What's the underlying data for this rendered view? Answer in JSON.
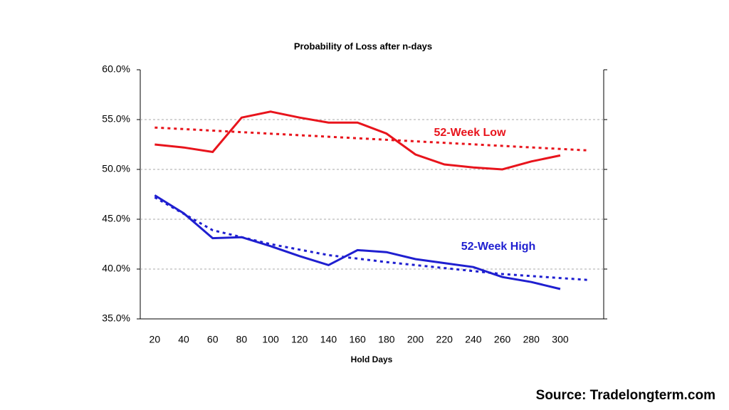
{
  "chart_data": {
    "type": "line",
    "title": "Probability of Loss after n-days",
    "x_label": "Hold Days",
    "source": "Source: Tradelongterm.com",
    "x": [
      20,
      40,
      60,
      80,
      100,
      120,
      140,
      160,
      180,
      200,
      220,
      240,
      260,
      280,
      300
    ],
    "xlim": [
      10,
      330
    ],
    "xticks": [
      20,
      40,
      60,
      80,
      100,
      120,
      140,
      160,
      180,
      200,
      220,
      240,
      260,
      280,
      300
    ],
    "ylim": [
      35,
      60
    ],
    "yticks": [
      {
        "value": 35,
        "label": "35.0%"
      },
      {
        "value": 40,
        "label": "40.0%"
      },
      {
        "value": 45,
        "label": "45.0%"
      },
      {
        "value": 50,
        "label": "50.0%"
      },
      {
        "value": 55,
        "label": "55.0%"
      },
      {
        "value": 60,
        "label": "60.0%"
      }
    ],
    "grid": true,
    "series": [
      {
        "name": "52-Week Low",
        "color": "#e8141c",
        "values": [
          52.5,
          52.2,
          51.75,
          55.2,
          55.8,
          55.2,
          54.7,
          54.7,
          53.6,
          51.5,
          50.5,
          50.2,
          50.0,
          50.8,
          51.4
        ],
        "trend": {
          "x": [
            20,
            320
          ],
          "values": [
            54.2,
            51.9
          ]
        }
      },
      {
        "name": "52-Week High",
        "color": "#1f1fd0",
        "values": [
          47.4,
          45.6,
          43.1,
          43.2,
          42.3,
          41.3,
          40.4,
          41.9,
          41.7,
          41.0,
          40.6,
          40.2,
          39.2,
          38.7,
          38.0
        ],
        "trend": {
          "x": [
            20,
            60,
            100,
            140,
            180,
            220,
            260,
            320
          ],
          "values": [
            47.2,
            43.9,
            42.5,
            41.4,
            40.7,
            40.1,
            39.5,
            38.9
          ]
        }
      }
    ]
  }
}
